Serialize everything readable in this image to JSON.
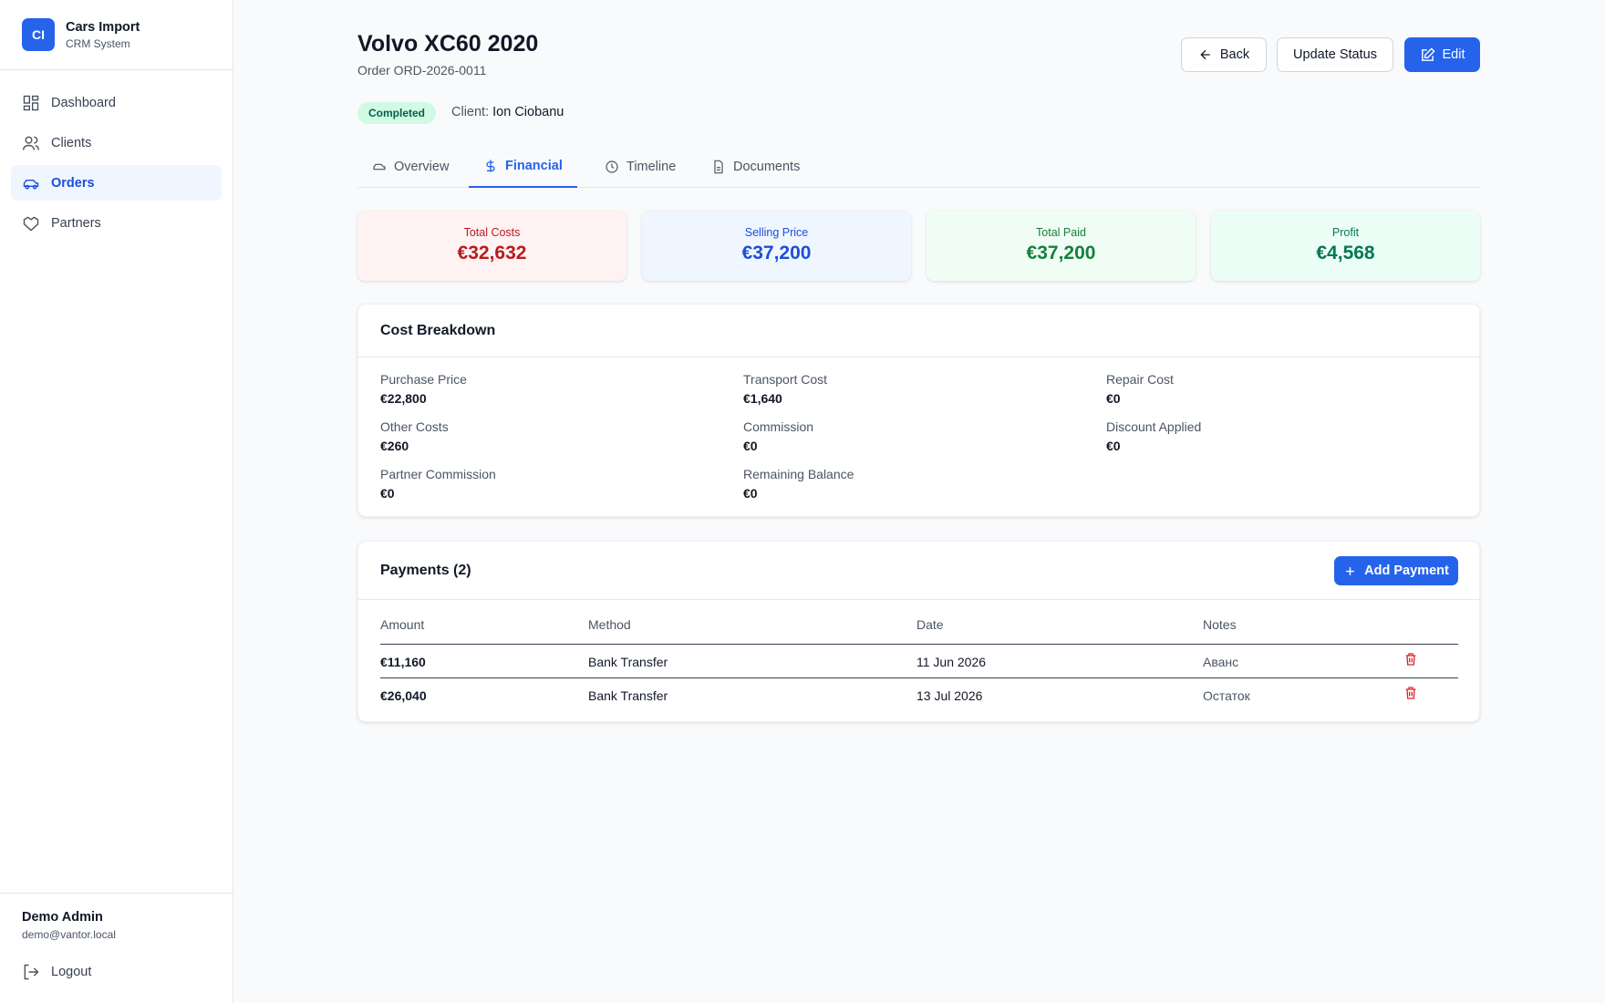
{
  "sidebar": {
    "logo": "CI",
    "brand": "Cars Import",
    "subtitle": "CRM System",
    "nav": [
      "Dashboard",
      "Clients",
      "Orders",
      "Partners"
    ],
    "user": {
      "name": "Demo Admin",
      "email": "demo@vantor.local"
    },
    "logout": "Logout"
  },
  "header": {
    "title": "Volvo XC60 2020",
    "order": "Order ORD-2026-0011",
    "status": "Completed",
    "client_label": "Client:",
    "client": "Ion Ciobanu",
    "buttons": [
      "Back",
      "Update Status",
      "Edit"
    ]
  },
  "tabs": [
    "Overview",
    "Financial",
    "Timeline",
    "Documents"
  ],
  "summary": [
    {
      "label": "Total Costs",
      "value": "€32,632"
    },
    {
      "label": "Selling Price",
      "value": "€37,200"
    },
    {
      "label": "Total Paid",
      "value": "€37,200"
    },
    {
      "label": "Profit",
      "value": "€4,568"
    }
  ],
  "cost_breakdown": {
    "title": "Cost Breakdown",
    "items": [
      {
        "label": "Purchase Price",
        "value": "€22,800"
      },
      {
        "label": "Transport Cost",
        "value": "€1,640"
      },
      {
        "label": "Repair Cost",
        "value": "€0"
      },
      {
        "label": "Other Costs",
        "value": "€260"
      },
      {
        "label": "Commission",
        "value": "€0"
      },
      {
        "label": "Discount Applied",
        "value": "€0"
      },
      {
        "label": "Partner Commission",
        "value": "€0"
      },
      {
        "label": "Remaining Balance",
        "value": "€0"
      }
    ]
  },
  "payments": {
    "title": "Payments (2)",
    "add": "Add Payment",
    "columns": [
      "Amount",
      "Method",
      "Date",
      "Notes"
    ],
    "rows": [
      [
        "€11,160",
        "Bank Transfer",
        "11 Jun 2026",
        "Аванс"
      ],
      [
        "€26,040",
        "Bank Transfer",
        "13 Jul 2026",
        "Остаток"
      ]
    ]
  }
}
